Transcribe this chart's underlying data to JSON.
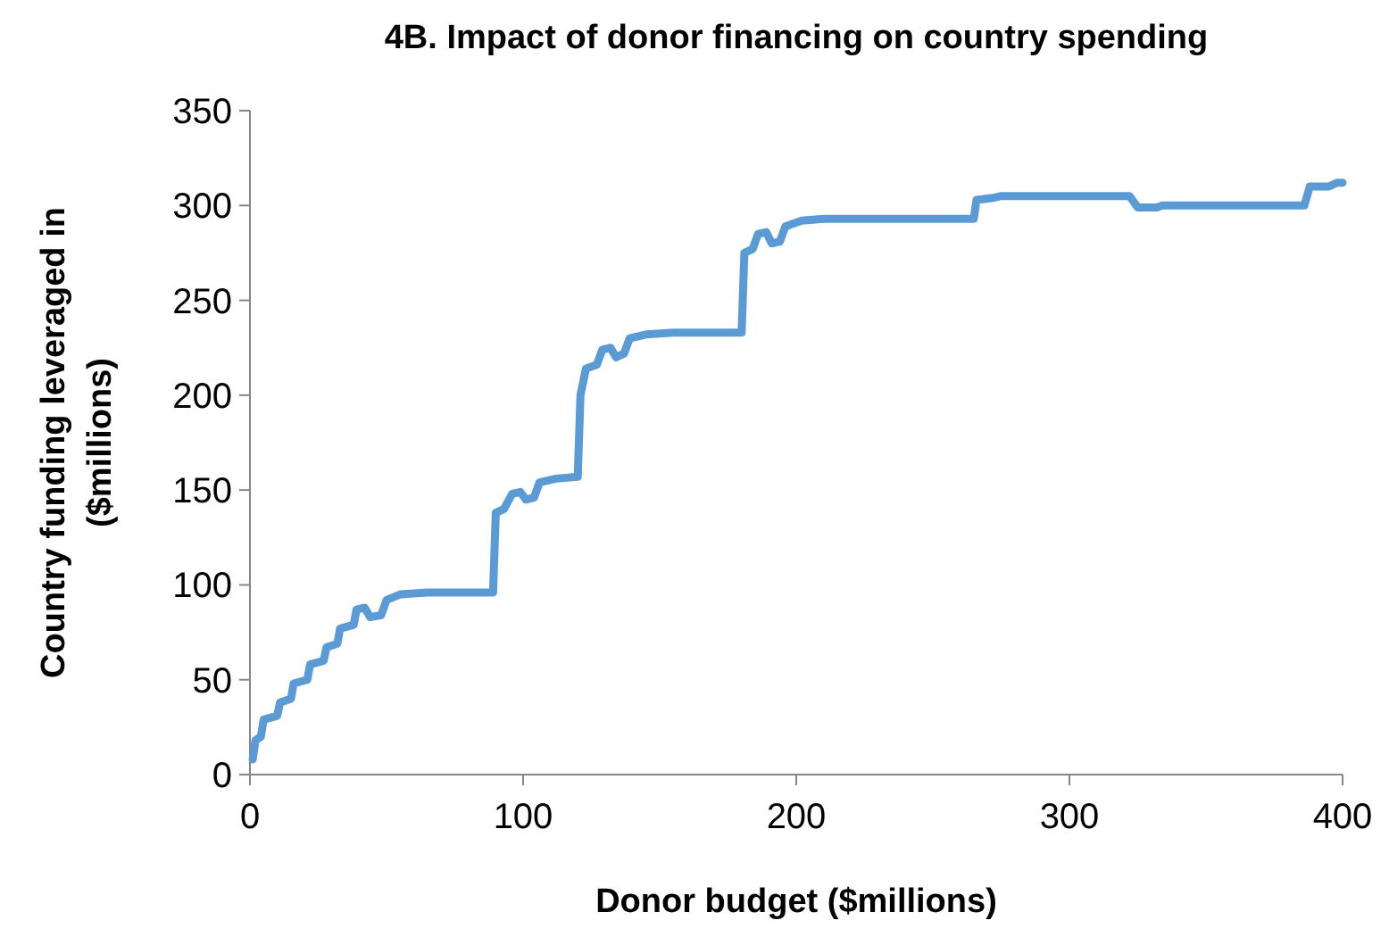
{
  "chart_data": {
    "type": "line",
    "title": "4B.  Impact of donor financing on country spending",
    "xlabel": "Donor budget ($millions)",
    "ylabel": "Country funding leveraged in ($millions)",
    "xlim": [
      0,
      400
    ],
    "ylim": [
      0,
      350
    ],
    "xticks": [
      0,
      100,
      200,
      300,
      400
    ],
    "yticks": [
      0,
      50,
      100,
      150,
      200,
      250,
      300,
      350
    ],
    "series": [
      {
        "color": "#5b9bd5",
        "line_style": "solid",
        "x": [
          1,
          2,
          4,
          5,
          10,
          11,
          15,
          16,
          21,
          22,
          27,
          28,
          32,
          33,
          38,
          39,
          42,
          44,
          48,
          50,
          55,
          65,
          89,
          90,
          93,
          96,
          99,
          101,
          104,
          106,
          112,
          120,
          121,
          123,
          127,
          129,
          132,
          134,
          137,
          139,
          145,
          155,
          180,
          181,
          184,
          186,
          189,
          191,
          194,
          196,
          202,
          210,
          265,
          266,
          272,
          275,
          322,
          325,
          332,
          334,
          386,
          388,
          395,
          398,
          400
        ],
        "values": [
          8,
          18,
          20,
          29,
          31,
          38,
          40,
          48,
          50,
          58,
          60,
          67,
          69,
          77,
          79,
          87,
          88,
          83,
          84,
          92,
          95,
          96,
          96,
          138,
          140,
          148,
          149,
          145,
          146,
          154,
          156,
          157,
          200,
          214,
          216,
          224,
          225,
          220,
          222,
          230,
          232,
          233,
          233,
          275,
          277,
          285,
          286,
          280,
          281,
          289,
          292,
          293,
          293,
          303,
          304,
          305,
          305,
          299,
          299,
          300,
          300,
          310,
          310,
          312,
          312
        ]
      }
    ]
  }
}
